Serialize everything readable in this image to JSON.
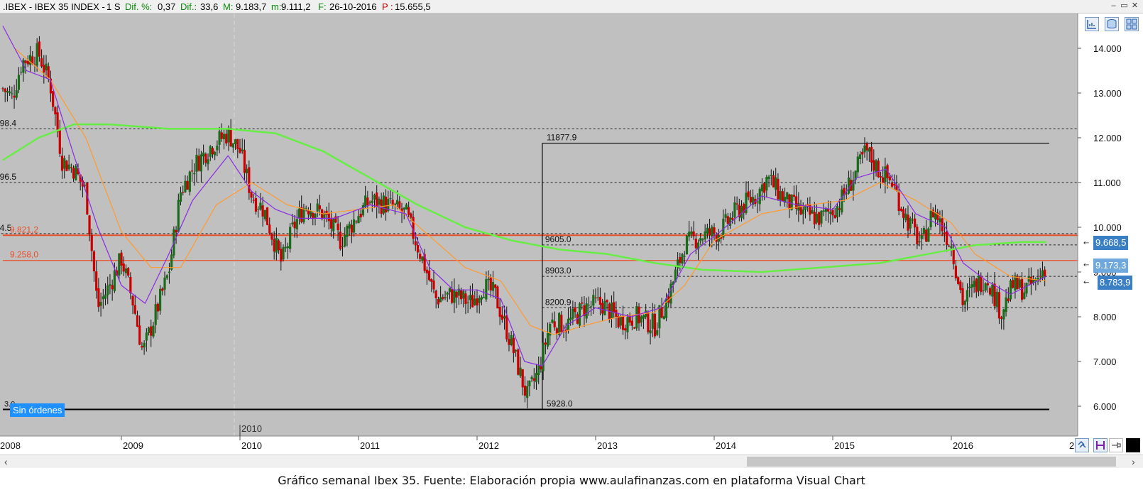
{
  "header": {
    "symbol": ".IBEX - IBEX 35 INDEX -",
    "period": "1 S",
    "diff_pct_label": "Dif. %:",
    "diff_pct_value": "0,37",
    "diff_label": "Dif.:",
    "diff_value": "33,6",
    "max_label": "M:",
    "max_value": "9.183,7",
    "min_label": "m:",
    "min_value": "9.111,2",
    "date_label": "F:",
    "date_value": "26-10-2016",
    "p_label": "P :",
    "p_value": "15.655,5"
  },
  "window_controls": [
    "–",
    "▭",
    "✕"
  ],
  "toolbar_icons": [
    "chart-settings-icon",
    "database-icon",
    "layout-icon"
  ],
  "status_badge": "Sin órdenes",
  "caption": "Gráfico semanal Ibex 35. Fuente: Elaboración propia www.aulafinanzas.com en plataforma Visual Chart",
  "colors": {
    "plot_bg": "#c0c0c0",
    "up_candle": "#1a6b1a",
    "down_candle": "#cc0000",
    "ma_fast": "#8a2be2",
    "ma_mid": "#ff9a2e",
    "ma_slow": "#66ee44",
    "hline_red": "#e8502a",
    "price_tag_blue": "#3a7fc4"
  },
  "chart_data": {
    "type": "candlestick",
    "title": "",
    "x_axis": {
      "start_label": "2008",
      "tick_labels": [
        "2009",
        "2010",
        "2011",
        "2012",
        "2013",
        "2014",
        "2015",
        "2016"
      ],
      "extra_label": "2010",
      "right_edge_label": "2"
    },
    "y_axis": {
      "ticks": [
        14000,
        13000,
        12000,
        11000,
        10000,
        9000,
        8000,
        7000,
        6000
      ],
      "tick_labels": [
        "14.000",
        "13.000",
        "12.000",
        "11.000",
        "10.000",
        "9.000",
        "8.000",
        "7.000",
        "6.000"
      ],
      "range": [
        5400,
        14700
      ]
    },
    "weekly_close_path": [
      [
        2008.0,
        13100
      ],
      [
        2008.08,
        12900
      ],
      [
        2008.16,
        13700
      ],
      [
        2008.3,
        13900
      ],
      [
        2008.4,
        13200
      ],
      [
        2008.5,
        11500
      ],
      [
        2008.6,
        11300
      ],
      [
        2008.7,
        10800
      ],
      [
        2008.8,
        8200
      ],
      [
        2008.9,
        8700
      ],
      [
        2009.0,
        9300
      ],
      [
        2009.1,
        8300
      ],
      [
        2009.18,
        7200
      ],
      [
        2009.28,
        8000
      ],
      [
        2009.4,
        9000
      ],
      [
        2009.5,
        10800
      ],
      [
        2009.62,
        11400
      ],
      [
        2009.75,
        11800
      ],
      [
        2009.9,
        12100
      ],
      [
        2010.0,
        11700
      ],
      [
        2010.1,
        10700
      ],
      [
        2010.2,
        10400
      ],
      [
        2010.35,
        9200
      ],
      [
        2010.45,
        10000
      ],
      [
        2010.55,
        10500
      ],
      [
        2010.7,
        10300
      ],
      [
        2010.85,
        9700
      ],
      [
        2011.0,
        10300
      ],
      [
        2011.1,
        10600
      ],
      [
        2011.25,
        10500
      ],
      [
        2011.4,
        10300
      ],
      [
        2011.55,
        9200
      ],
      [
        2011.65,
        8400
      ],
      [
        2011.8,
        8500
      ],
      [
        2011.95,
        8300
      ],
      [
        2012.05,
        8700
      ],
      [
        2012.15,
        8500
      ],
      [
        2012.3,
        7300
      ],
      [
        2012.42,
        6200
      ],
      [
        2012.52,
        6800
      ],
      [
        2012.62,
        7900
      ],
      [
        2012.75,
        7800
      ],
      [
        2012.9,
        8200
      ],
      [
        2013.05,
        8300
      ],
      [
        2013.2,
        7900
      ],
      [
        2013.35,
        8000
      ],
      [
        2013.5,
        7800
      ],
      [
        2013.62,
        8500
      ],
      [
        2013.75,
        9600
      ],
      [
        2013.88,
        9800
      ],
      [
        2014.05,
        9900
      ],
      [
        2014.2,
        10400
      ],
      [
        2014.35,
        10700
      ],
      [
        2014.45,
        11100
      ],
      [
        2014.6,
        10600
      ],
      [
        2014.75,
        10300
      ],
      [
        2014.9,
        10200
      ],
      [
        2015.05,
        10500
      ],
      [
        2015.15,
        11000
      ],
      [
        2015.28,
        11700
      ],
      [
        2015.38,
        11300
      ],
      [
        2015.5,
        11000
      ],
      [
        2015.62,
        10200
      ],
      [
        2015.75,
        9600
      ],
      [
        2015.85,
        10400
      ],
      [
        2016.0,
        9600
      ],
      [
        2016.1,
        8300
      ],
      [
        2016.2,
        8700
      ],
      [
        2016.3,
        8900
      ],
      [
        2016.42,
        8100
      ],
      [
        2016.52,
        8700
      ],
      [
        2016.62,
        8600
      ],
      [
        2016.72,
        8800
      ],
      [
        2016.8,
        9180
      ]
    ],
    "ma_fast_path": [
      [
        2008.0,
        14500
      ],
      [
        2008.2,
        13500
      ],
      [
        2008.4,
        13300
      ],
      [
        2008.6,
        11600
      ],
      [
        2008.8,
        10000
      ],
      [
        2009.0,
        8700
      ],
      [
        2009.2,
        8300
      ],
      [
        2009.4,
        9400
      ],
      [
        2009.6,
        10600
      ],
      [
        2009.9,
        11600
      ],
      [
        2010.1,
        10800
      ],
      [
        2010.3,
        10400
      ],
      [
        2010.5,
        10200
      ],
      [
        2010.8,
        10200
      ],
      [
        2011.1,
        10500
      ],
      [
        2011.4,
        10300
      ],
      [
        2011.6,
        9100
      ],
      [
        2011.8,
        8600
      ],
      [
        2012.0,
        8600
      ],
      [
        2012.2,
        8400
      ],
      [
        2012.4,
        7000
      ],
      [
        2012.55,
        6900
      ],
      [
        2012.75,
        7800
      ],
      [
        2013.0,
        8200
      ],
      [
        2013.3,
        8000
      ],
      [
        2013.55,
        8200
      ],
      [
        2013.8,
        9400
      ],
      [
        2014.05,
        9900
      ],
      [
        2014.4,
        10700
      ],
      [
        2014.7,
        10500
      ],
      [
        2015.0,
        10400
      ],
      [
        2015.2,
        11100
      ],
      [
        2015.45,
        11300
      ],
      [
        2015.7,
        10300
      ],
      [
        2015.95,
        10000
      ],
      [
        2016.1,
        9200
      ],
      [
        2016.3,
        8800
      ],
      [
        2016.5,
        8500
      ],
      [
        2016.8,
        8900
      ]
    ],
    "ma_mid_path": [
      [
        2008.1,
        14000
      ],
      [
        2008.4,
        13300
      ],
      [
        2008.7,
        12000
      ],
      [
        2009.0,
        9900
      ],
      [
        2009.25,
        9100
      ],
      [
        2009.5,
        9100
      ],
      [
        2009.8,
        10500
      ],
      [
        2010.1,
        11000
      ],
      [
        2010.4,
        10500
      ],
      [
        2010.7,
        10300
      ],
      [
        2011.0,
        10400
      ],
      [
        2011.3,
        10500
      ],
      [
        2011.6,
        9800
      ],
      [
        2011.9,
        9100
      ],
      [
        2012.2,
        8800
      ],
      [
        2012.45,
        7800
      ],
      [
        2012.65,
        7600
      ],
      [
        2012.9,
        7800
      ],
      [
        2013.2,
        8000
      ],
      [
        2013.5,
        8100
      ],
      [
        2013.75,
        8700
      ],
      [
        2014.0,
        9700
      ],
      [
        2014.4,
        10300
      ],
      [
        2014.8,
        10500
      ],
      [
        2015.1,
        10600
      ],
      [
        2015.4,
        11000
      ],
      [
        2015.7,
        10600
      ],
      [
        2016.0,
        10100
      ],
      [
        2016.2,
        9400
      ],
      [
        2016.5,
        8900
      ],
      [
        2016.8,
        8800
      ]
    ],
    "ma_slow_path": [
      [
        2008.0,
        11500
      ],
      [
        2008.3,
        12000
      ],
      [
        2008.6,
        12300
      ],
      [
        2008.9,
        12300
      ],
      [
        2009.4,
        12200
      ],
      [
        2009.9,
        12200
      ],
      [
        2010.3,
        12100
      ],
      [
        2010.7,
        11700
      ],
      [
        2011.1,
        11100
      ],
      [
        2011.5,
        10500
      ],
      [
        2011.9,
        10000
      ],
      [
        2012.3,
        9700
      ],
      [
        2012.7,
        9500
      ],
      [
        2013.1,
        9400
      ],
      [
        2013.5,
        9200
      ],
      [
        2013.9,
        9050
      ],
      [
        2014.4,
        9000
      ],
      [
        2014.9,
        9100
      ],
      [
        2015.4,
        9200
      ],
      [
        2015.8,
        9400
      ],
      [
        2016.2,
        9600
      ],
      [
        2016.6,
        9670
      ],
      [
        2016.8,
        9668.5
      ]
    ],
    "horizontal_levels": [
      {
        "label": "98.4",
        "value": 12200,
        "style": "dashed",
        "from_year": 2007.95
      },
      {
        "label": "96.5",
        "value": 11000,
        "style": "dashed",
        "from_year": 2007.95
      },
      {
        "label": "4.5",
        "value": 9860,
        "style": "dashed",
        "from_year": 2007.95
      },
      {
        "label": "9605.0",
        "value": 9605,
        "style": "dashed",
        "from_year": 2012.55
      },
      {
        "label": "8903.0",
        "value": 8903,
        "style": "dashed",
        "from_year": 2012.55
      },
      {
        "label": "8200.9",
        "value": 8201,
        "style": "dashed",
        "from_year": 2012.55
      }
    ],
    "fib_box": {
      "top_label": "11877.9",
      "top": 11878,
      "bottom_label": "5928.0",
      "bottom": 5928,
      "from_year": 2012.55
    },
    "red_lines": [
      {
        "label": "9.821,2",
        "value": 9821
      },
      {
        "label": "9.258,0",
        "value": 9258
      }
    ],
    "bottom_line": {
      "label": "3.0",
      "value": 5928
    },
    "price_tags": [
      {
        "label": "9.668,5",
        "value": 9668.5
      },
      {
        "label": "9.173,3",
        "value": 9173
      },
      {
        "label": "8.783,9",
        "value": 8784
      }
    ]
  }
}
